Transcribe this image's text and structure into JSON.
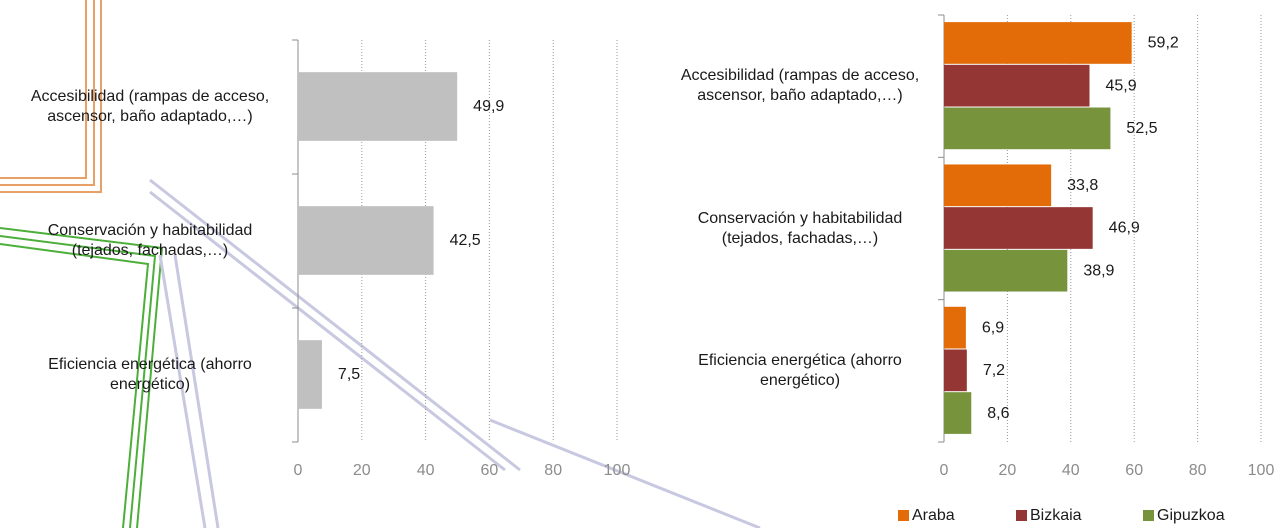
{
  "chart_data": [
    {
      "type": "bar",
      "orientation": "horizontal",
      "categories": [
        "Accesibilidad (rampas de acceso, ascensor, baño adaptado,…)",
        "Conservación y habitabilidad (tejados, fachadas,…)",
        "Eficiencia energética (ahorro energético)"
      ],
      "values": [
        49.9,
        42.5,
        7.5
      ],
      "value_labels": [
        "49,9",
        "42,5",
        "7,5"
      ],
      "color": "#c0c0c0",
      "xlim": [
        0,
        100
      ],
      "xticks": [
        0,
        20,
        40,
        60,
        80,
        100
      ],
      "grid": true
    },
    {
      "type": "bar",
      "orientation": "horizontal",
      "categories": [
        "Accesibilidad (rampas de acceso, ascensor, baño adaptado,…)",
        "Conservación y habitabilidad (tejados, fachadas,…)",
        "Eficiencia energética (ahorro energético)"
      ],
      "series": [
        {
          "name": "Araba",
          "color": "#e36c09",
          "values": [
            59.2,
            33.8,
            6.9
          ],
          "value_labels": [
            "59,2",
            "33,8",
            "6,9"
          ]
        },
        {
          "name": "Bizkaia",
          "color": "#943634",
          "values": [
            45.9,
            46.9,
            7.2
          ],
          "value_labels": [
            "45,9",
            "46,9",
            "7,2"
          ]
        },
        {
          "name": "Gipuzkoa",
          "color": "#77933c",
          "values": [
            52.5,
            38.9,
            8.6
          ],
          "value_labels": [
            "52,5",
            "38,9",
            "8,6"
          ]
        }
      ],
      "xlim": [
        0,
        100
      ],
      "xticks": [
        0,
        20,
        40,
        60,
        80,
        100
      ],
      "grid": true,
      "legend": "bottom"
    }
  ]
}
